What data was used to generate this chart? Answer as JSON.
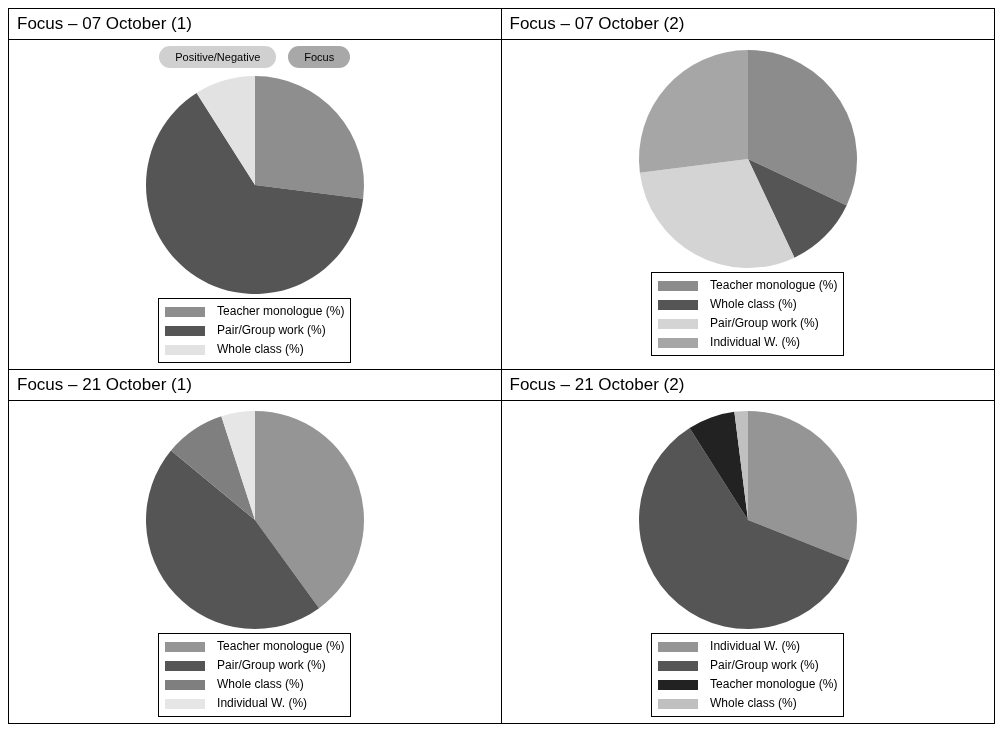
{
  "chart_data": [
    {
      "type": "pie",
      "title": "Focus – 07 October (1)",
      "annotations": [
        "Positive/Negative",
        "Focus"
      ],
      "categories": [
        "Teacher monologue (%)",
        "Pair/Group work (%)",
        "Whole class (%)"
      ],
      "values": [
        27,
        64,
        9
      ],
      "colors": [
        "#8e8e8e",
        "#555555",
        "#e2e2e2"
      ],
      "legend": "bottom"
    },
    {
      "type": "pie",
      "title": "Focus – 07 October (2)",
      "categories": [
        "Teacher monologue (%)",
        "Whole class (%)",
        "Pair/Group work (%)",
        "Individual W. (%)"
      ],
      "values": [
        32,
        11,
        30,
        27
      ],
      "colors": [
        "#8c8c8c",
        "#555555",
        "#d4d4d4",
        "#a6a6a6"
      ],
      "legend": "bottom"
    },
    {
      "type": "pie",
      "title": "Focus – 21 October (1)",
      "categories": [
        "Teacher monologue (%)",
        "Pair/Group work (%)",
        "Whole class (%)",
        "Individual W. (%)"
      ],
      "values": [
        40,
        46,
        9,
        5
      ],
      "colors": [
        "#959595",
        "#555555",
        "#7f7f7f",
        "#e6e6e6"
      ],
      "legend": "bottom"
    },
    {
      "type": "pie",
      "title": "Focus – 21 October (2)",
      "categories": [
        "Individual W. (%)",
        "Pair/Group work (%)",
        "Teacher monologue (%)",
        "Whole class (%)"
      ],
      "values": [
        31,
        60,
        7,
        2
      ],
      "colors": [
        "#959595",
        "#555555",
        "#222222",
        "#c0c0c0"
      ],
      "legend": "bottom"
    }
  ]
}
